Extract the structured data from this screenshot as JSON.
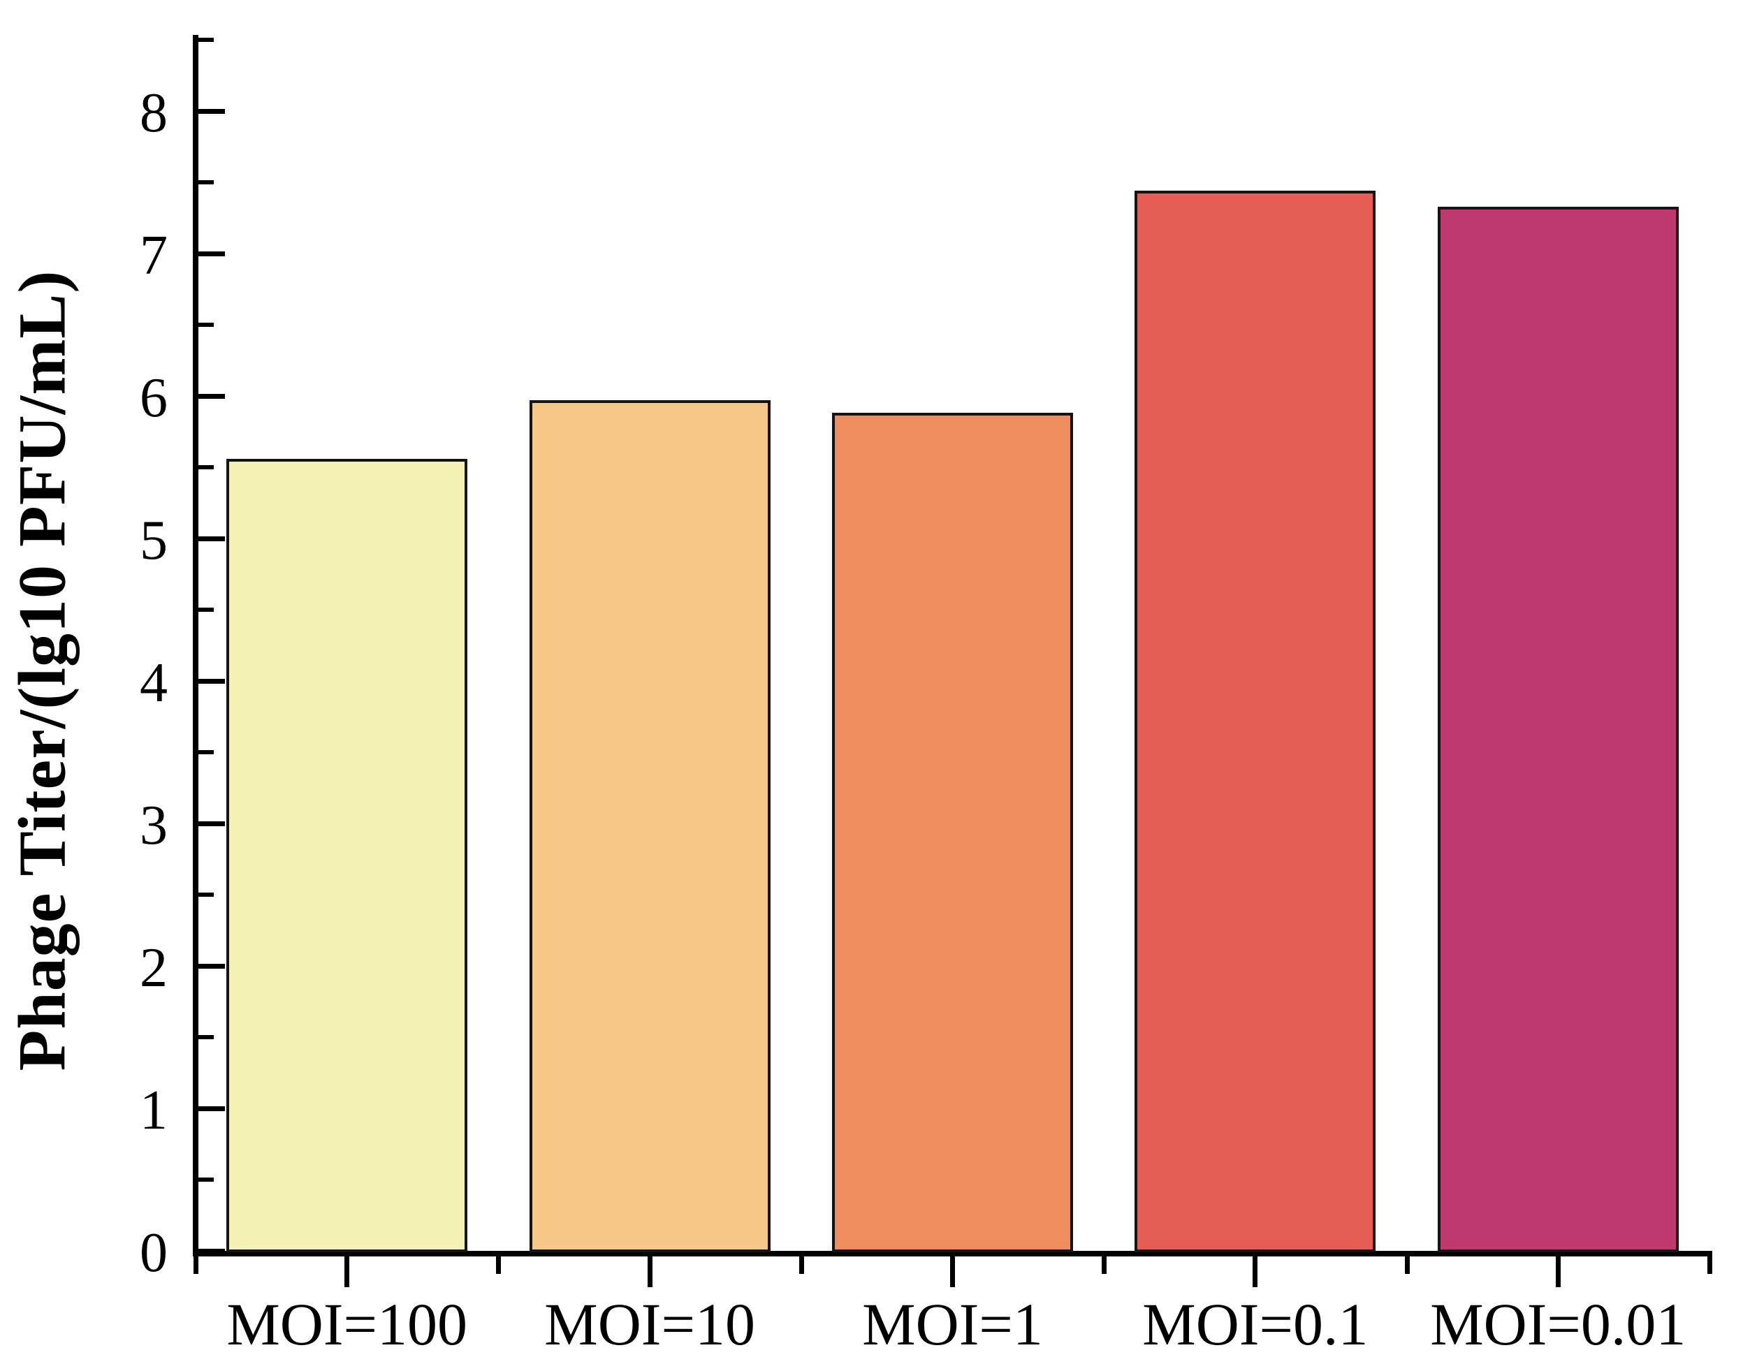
{
  "figure": {
    "background": "#ffffff"
  },
  "chart_data": {
    "type": "bar",
    "title": "",
    "xlabel": "",
    "ylabel": "Phage Titer/(lg10 PFU/mL)",
    "categories": [
      "MOI=100",
      "MOI=10",
      "MOI=1",
      "MOI=0.1",
      "MOI=0.01"
    ],
    "values": [
      5.56,
      5.97,
      5.88,
      7.44,
      7.33
    ],
    "bar_colors": [
      "#F4F1B4",
      "#F6C888",
      "#EF8E5C",
      "#E55E55",
      "#BD3A6E"
    ],
    "bar_border_color": "#141414",
    "axis_color": "#000000",
    "ylim": [
      0,
      8.55
    ],
    "yticks": [
      0,
      1,
      2,
      3,
      4,
      5,
      6,
      7,
      8
    ],
    "y_minor_step": 0.5,
    "grid": false,
    "legend": "none",
    "tick_style": {
      "y_direction": "in",
      "x_direction": "out"
    }
  }
}
